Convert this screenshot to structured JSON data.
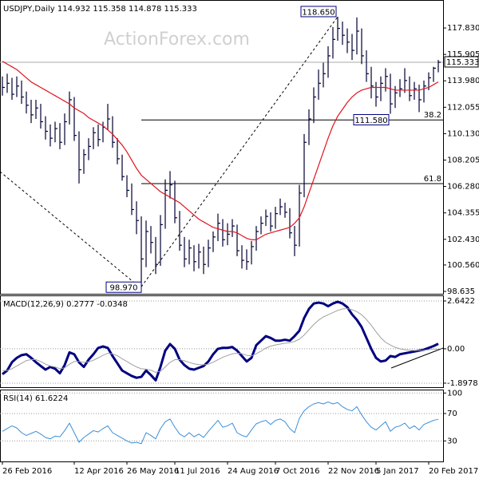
{
  "chart_data": [
    {
      "type": "ohlc",
      "title": "USDJPY,Daily  114.932 115.358 114.878 115.333",
      "watermark": "ActionForex.com",
      "color": "#000033",
      "categories": [
        "26 Feb 2016",
        null,
        null,
        null,
        null,
        null,
        null,
        null,
        null,
        null,
        null,
        null,
        null,
        null,
        null,
        "12 Apr 2016",
        null,
        null,
        null,
        null,
        null,
        null,
        null,
        null,
        null,
        null,
        "26 May 2016",
        null,
        null,
        null,
        null,
        null,
        null,
        null,
        null,
        null,
        "11 Jul 2016",
        null,
        null,
        null,
        null,
        null,
        null,
        null,
        null,
        null,
        null,
        "24 Aug 2016",
        null,
        null,
        null,
        null,
        null,
        null,
        null,
        null,
        null,
        "7 Oct 2016",
        null,
        null,
        null,
        null,
        null,
        null,
        null,
        null,
        null,
        null,
        "22 Nov 2016",
        null,
        null,
        null,
        null,
        null,
        null,
        null,
        null,
        null,
        "5 Jan 2017",
        null,
        null,
        null,
        null,
        null,
        null,
        null,
        null,
        null,
        null,
        "20 Feb 2017",
        null,
        null
      ],
      "high": [
        114.3,
        114.5,
        114.2,
        114.3,
        114.0,
        113.2,
        112.6,
        112.6,
        112.3,
        111.4,
        110.8,
        111.0,
        110.9,
        111.6,
        113.2,
        112.8,
        110.3,
        109.0,
        109.8,
        110.6,
        110.8,
        111.0,
        112.3,
        111.4,
        109.8,
        108.6,
        107.1,
        106.5,
        105.2,
        104.1,
        103.8,
        103.4,
        102.6,
        104.2,
        106.8,
        107.4,
        106.7,
        104.5,
        102.6,
        102.4,
        102.0,
        102.1,
        101.9,
        102.4,
        103.0,
        104.3,
        103.9,
        103.6,
        103.9,
        103.5,
        102.0,
        101.7,
        102.3,
        103.4,
        104.1,
        104.6,
        104.4,
        104.8,
        105.4,
        105.1,
        104.7,
        103.4,
        106.4,
        110.1,
        111.9,
        113.5,
        114.8,
        115.3,
        116.5,
        117.9,
        118.65,
        118.3,
        117.8,
        117.4,
        118.6,
        117.8,
        116.2,
        115.0,
        113.9,
        114.3,
        114.9,
        114.5,
        113.6,
        114.1,
        114.9,
        114.3,
        113.9,
        113.7,
        114.0,
        114.6,
        115.0,
        115.5
      ],
      "low": [
        112.9,
        113.1,
        112.6,
        112.8,
        112.3,
        111.6,
        110.9,
        111.2,
        110.5,
        109.7,
        109.2,
        109.5,
        109.0,
        109.3,
        110.8,
        109.6,
        106.5,
        107.2,
        108.2,
        109.0,
        109.2,
        109.5,
        110.4,
        109.1,
        107.9,
        106.7,
        105.5,
        104.2,
        102.8,
        98.97,
        100.4,
        101.4,
        99.9,
        100.5,
        103.2,
        105.4,
        103.6,
        101.6,
        100.4,
        100.6,
        100.1,
        100.3,
        99.9,
        100.4,
        101.5,
        102.3,
        101.9,
        102.0,
        102.6,
        101.2,
        100.3,
        100.2,
        100.6,
        101.6,
        102.8,
        103.4,
        103.0,
        103.2,
        104.2,
        104.0,
        102.5,
        101.2,
        101.9,
        105.5,
        109.3,
        110.9,
        112.6,
        113.5,
        114.2,
        115.6,
        116.9,
        116.6,
        116.0,
        115.5,
        115.9,
        115.2,
        113.9,
        112.7,
        112.1,
        112.5,
        113.2,
        111.58,
        112.0,
        112.8,
        113.1,
        112.5,
        112.6,
        111.7,
        112.4,
        113.3,
        113.9,
        114.6
      ],
      "close": [
        113.5,
        113.8,
        113.0,
        113.6,
        112.8,
        112.2,
        111.5,
        112.0,
        111.0,
        110.3,
        109.8,
        110.5,
        109.5,
        111.0,
        112.6,
        110.0,
        107.5,
        108.6,
        109.2,
        110.2,
        109.7,
        110.6,
        111.2,
        109.5,
        108.3,
        107.0,
        106.0,
        104.6,
        103.8,
        101.0,
        103.0,
        102.2,
        100.6,
        103.5,
        106.0,
        106.4,
        104.0,
        102.0,
        101.0,
        101.8,
        100.8,
        101.5,
        100.6,
        101.8,
        102.6,
        103.6,
        102.4,
        102.8,
        103.4,
        101.6,
        100.9,
        100.8,
        101.9,
        103.0,
        103.6,
        104.1,
        103.4,
        104.3,
        104.8,
        104.4,
        102.9,
        102.0,
        105.8,
        109.5,
        111.2,
        112.8,
        113.8,
        114.5,
        115.8,
        117.0,
        117.8,
        117.3,
        116.8,
        116.2,
        117.6,
        115.8,
        114.5,
        113.6,
        112.8,
        113.8,
        114.3,
        112.3,
        113.1,
        113.4,
        114.0,
        112.9,
        113.4,
        112.6,
        113.6,
        114.2,
        114.9,
        115.333
      ],
      "ma": {
        "color": "#e0141e",
        "values": [
          115.4,
          115.2,
          115.0,
          114.8,
          114.5,
          114.2,
          113.9,
          113.7,
          113.5,
          113.3,
          113.1,
          112.9,
          112.7,
          112.5,
          112.3,
          112.0,
          111.8,
          111.6,
          111.3,
          111.1,
          110.9,
          110.7,
          110.4,
          110.1,
          109.7,
          109.3,
          108.8,
          108.2,
          107.6,
          107.1,
          106.8,
          106.5,
          106.2,
          105.9,
          105.7,
          105.5,
          105.3,
          105.1,
          104.8,
          104.5,
          104.2,
          103.9,
          103.7,
          103.5,
          103.3,
          103.2,
          103.1,
          103.0,
          103.0,
          102.9,
          102.7,
          102.5,
          102.4,
          102.4,
          102.6,
          102.8,
          102.9,
          103.0,
          103.1,
          103.2,
          103.3,
          103.6,
          104.0,
          104.8,
          105.8,
          106.8,
          107.8,
          108.8,
          109.8,
          110.7,
          111.4,
          111.9,
          112.4,
          112.8,
          113.1,
          113.3,
          113.4,
          113.5,
          113.5,
          113.5,
          113.5,
          113.4,
          113.3,
          113.3,
          113.3,
          113.3,
          113.3,
          113.3,
          113.4,
          113.5,
          113.7,
          113.9
        ]
      },
      "annotations": [
        {
          "index": 29,
          "value": 98.97,
          "label": "98.970"
        },
        {
          "index": 70,
          "value": 118.65,
          "label": "118.650"
        },
        {
          "index": 81,
          "value": 111.58,
          "label": "111.580"
        }
      ],
      "levels": [
        {
          "value": 111.13,
          "label": "38.2"
        },
        {
          "value": 106.49,
          "label": "61.8"
        }
      ],
      "ylim": [
        98.46,
        119.87
      ],
      "yticks": [
        {
          "value": 98.635,
          "label": "98.635"
        },
        {
          "value": 100.56,
          "label": "100.560"
        },
        {
          "value": 102.43,
          "label": "102.430"
        },
        {
          "value": 104.355,
          "label": "104.355"
        },
        {
          "value": 106.28,
          "label": "106.280"
        },
        {
          "value": 108.205,
          "label": "108.205"
        },
        {
          "value": 110.13,
          "label": "110.130"
        },
        {
          "value": 112.055,
          "label": "112.055"
        },
        {
          "value": 113.98,
          "label": "113.980"
        },
        {
          "value": 115.905,
          "label": "115.905"
        },
        {
          "value": 117.83,
          "label": "117.830"
        }
      ],
      "grid": false
    },
    {
      "type": "line",
      "title": "MACD(12,26,9) 0.2777 -0.0348",
      "series": [
        {
          "color": "#000080",
          "width": 3,
          "values": [
            -1.4,
            -1.2,
            -0.74,
            -0.5,
            -0.35,
            -0.3,
            -0.5,
            -0.74,
            -0.95,
            -1.15,
            -1.0,
            -1.1,
            -1.35,
            -0.9,
            -0.2,
            -0.3,
            -0.75,
            -1.0,
            -0.6,
            -0.3,
            0.05,
            0.13,
            0.05,
            -0.4,
            -0.8,
            -1.2,
            -1.35,
            -1.5,
            -1.6,
            -1.55,
            -1.2,
            -1.45,
            -1.74,
            -1.0,
            -0.1,
            0.26,
            0.0,
            -0.6,
            -0.9,
            -1.1,
            -1.15,
            -1.05,
            -0.95,
            -0.7,
            -0.3,
            0.0,
            0.05,
            0.05,
            0.1,
            -0.1,
            -0.4,
            -0.7,
            -0.5,
            0.2,
            0.45,
            0.7,
            0.6,
            0.45,
            0.45,
            0.5,
            0.45,
            0.7,
            1.0,
            1.7,
            2.2,
            2.5,
            2.55,
            2.5,
            2.35,
            2.5,
            2.6,
            2.5,
            2.3,
            1.9,
            1.6,
            1.2,
            0.6,
            0.0,
            -0.5,
            -0.7,
            -0.65,
            -0.4,
            -0.45,
            -0.3,
            -0.25,
            -0.2,
            -0.15,
            -0.1,
            -0.05,
            0.05,
            0.15,
            0.2777
          ]
        },
        {
          "color": "#a0a0a0",
          "width": 1,
          "values": [
            -1.2,
            -1.2,
            -1.1,
            -0.95,
            -0.8,
            -0.65,
            -0.6,
            -0.6,
            -0.7,
            -0.85,
            -0.95,
            -1.0,
            -1.1,
            -1.05,
            -0.85,
            -0.7,
            -0.7,
            -0.75,
            -0.72,
            -0.63,
            -0.5,
            -0.36,
            -0.25,
            -0.28,
            -0.38,
            -0.55,
            -0.7,
            -0.86,
            -1.0,
            -1.1,
            -1.12,
            -1.18,
            -1.3,
            -1.24,
            -1.0,
            -0.75,
            -0.6,
            -0.6,
            -0.66,
            -0.75,
            -0.83,
            -0.87,
            -0.88,
            -0.85,
            -0.74,
            -0.6,
            -0.47,
            -0.37,
            -0.28,
            -0.24,
            -0.27,
            -0.36,
            -0.39,
            -0.27,
            -0.13,
            0.04,
            0.15,
            0.21,
            0.26,
            0.31,
            0.34,
            0.41,
            0.53,
            0.76,
            1.05,
            1.34,
            1.58,
            1.76,
            1.88,
            2.0,
            2.12,
            2.2,
            2.22,
            2.16,
            2.05,
            1.88,
            1.62,
            1.3,
            0.94,
            0.61,
            0.36,
            0.21,
            0.08,
            0.0,
            -0.05,
            -0.08,
            -0.09,
            -0.09,
            -0.08,
            -0.05,
            -0.01,
            -0.0348
          ]
        }
      ],
      "ylim": [
        -2.12,
        2.95
      ],
      "yticks": [
        -1.8978,
        {
          "value": 0,
          "label": "0.00"
        },
        2.6422
      ],
      "grid": true
    },
    {
      "type": "line",
      "title": "RSI(14) 61.6224",
      "series": [
        {
          "color": "#3a8fd8",
          "width": 1,
          "values": [
            44,
            48,
            52,
            49,
            42,
            38,
            41,
            44,
            40,
            35,
            33,
            37,
            36,
            45,
            56,
            42,
            28,
            35,
            40,
            45,
            43,
            48,
            52,
            42,
            38,
            34,
            30,
            27,
            28,
            26,
            42,
            38,
            33,
            48,
            58,
            62,
            50,
            40,
            36,
            42,
            36,
            40,
            35,
            44,
            52,
            60,
            50,
            52,
            56,
            42,
            38,
            36,
            46,
            55,
            58,
            60,
            54,
            60,
            62,
            58,
            48,
            42,
            63,
            74,
            80,
            84,
            86,
            84,
            87,
            84,
            86,
            80,
            76,
            74,
            80,
            68,
            58,
            50,
            46,
            52,
            58,
            44,
            50,
            52,
            56,
            48,
            52,
            46,
            54,
            57,
            60,
            61.6224
          ]
        }
      ],
      "ylim": [
        0,
        105
      ],
      "yticks": [
        30,
        70,
        100
      ],
      "grid": true
    }
  ]
}
